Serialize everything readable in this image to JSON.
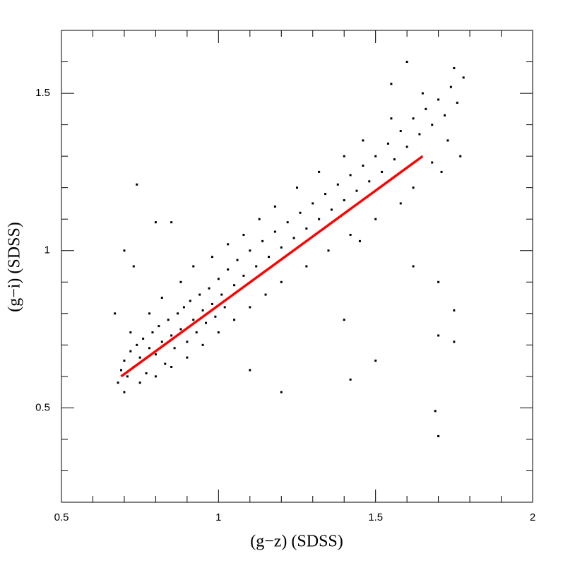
{
  "chart_data": {
    "type": "scatter",
    "xlabel": "(g−z) (SDSS)",
    "ylabel": "(g−i) (SDSS)",
    "xlim": [
      0.5,
      2
    ],
    "ylim": [
      0.2,
      1.7
    ],
    "xticks": [
      0.5,
      1,
      1.5,
      2
    ],
    "yticks": [
      0.5,
      1,
      1.5
    ],
    "xminorticks": [
      0.6,
      0.7,
      0.8,
      0.9,
      1.1,
      1.2,
      1.3,
      1.4,
      1.6,
      1.7,
      1.8,
      1.9
    ],
    "yminorticks": [
      0.3,
      0.4,
      0.6,
      0.7,
      0.8,
      0.9,
      1.1,
      1.2,
      1.3,
      1.4,
      1.6
    ],
    "color": "#000000",
    "x": [
      0.68,
      0.69,
      0.7,
      0.71,
      0.72,
      0.73,
      0.74,
      0.75,
      0.76,
      0.77,
      0.78,
      0.79,
      0.8,
      0.81,
      0.82,
      0.83,
      0.84,
      0.85,
      0.86,
      0.87,
      0.88,
      0.89,
      0.9,
      0.91,
      0.92,
      0.93,
      0.94,
      0.95,
      0.96,
      0.97,
      0.98,
      0.99,
      1.0,
      1.01,
      1.02,
      1.03,
      1.05,
      1.06,
      1.08,
      1.1,
      1.12,
      1.14,
      1.16,
      1.18,
      1.2,
      1.22,
      1.24,
      1.26,
      1.28,
      1.3,
      1.32,
      1.34,
      1.36,
      1.38,
      1.4,
      1.42,
      1.44,
      1.46,
      1.48,
      1.5,
      1.52,
      1.54,
      1.56,
      1.58,
      1.6,
      1.62,
      1.64,
      1.66,
      1.68,
      1.7,
      1.72,
      1.74,
      1.76,
      1.78,
      1.75,
      1.73,
      1.77,
      1.71,
      1.6,
      0.7,
      0.72,
      0.75,
      0.78,
      0.8,
      0.82,
      0.85,
      0.88,
      0.9,
      0.92,
      0.95,
      0.98,
      1.0,
      1.03,
      1.05,
      1.08,
      1.1,
      1.13,
      1.15,
      1.18,
      1.2,
      1.25,
      1.28,
      1.32,
      1.35,
      1.4,
      1.42,
      1.46,
      1.5,
      1.55,
      1.58,
      1.62,
      1.65,
      1.68,
      0.74,
      0.8,
      0.7,
      0.85,
      1.2,
      1.42,
      1.5,
      1.69,
      1.7,
      1.7,
      1.75,
      1.75,
      1.62,
      1.7,
      1.4,
      1.1,
      1.55,
      1.45,
      0.67,
      0.73
    ],
    "y": [
      0.58,
      0.62,
      0.65,
      0.6,
      0.68,
      0.63,
      0.7,
      0.66,
      0.72,
      0.61,
      0.69,
      0.74,
      0.67,
      0.76,
      0.71,
      0.64,
      0.78,
      0.73,
      0.69,
      0.8,
      0.75,
      0.82,
      0.71,
      0.84,
      0.78,
      0.74,
      0.86,
      0.81,
      0.77,
      0.88,
      0.83,
      0.79,
      0.91,
      0.86,
      0.82,
      0.94,
      0.89,
      0.97,
      0.92,
      1.0,
      0.95,
      1.03,
      0.98,
      1.06,
      1.01,
      1.09,
      1.04,
      1.12,
      1.07,
      1.15,
      1.1,
      1.18,
      1.13,
      1.21,
      1.16,
      1.24,
      1.19,
      1.27,
      1.22,
      1.3,
      1.25,
      1.34,
      1.29,
      1.38,
      1.33,
      1.42,
      1.37,
      1.45,
      1.4,
      1.48,
      1.43,
      1.52,
      1.47,
      1.55,
      1.58,
      1.35,
      1.3,
      1.25,
      1.6,
      0.55,
      0.74,
      0.58,
      0.8,
      0.6,
      0.85,
      0.63,
      0.9,
      0.66,
      0.95,
      0.7,
      0.98,
      0.74,
      1.02,
      0.78,
      1.05,
      0.82,
      1.1,
      0.86,
      1.14,
      0.9,
      1.2,
      0.95,
      1.25,
      1.0,
      1.3,
      1.05,
      1.35,
      1.1,
      1.42,
      1.15,
      1.2,
      1.5,
      1.28,
      1.21,
      1.09,
      1.0,
      1.09,
      0.55,
      0.59,
      0.65,
      0.49,
      0.41,
      0.73,
      0.71,
      0.81,
      0.95,
      0.9,
      0.78,
      0.62,
      1.53,
      1.03,
      0.8,
      0.95
    ],
    "fit": {
      "x": [
        0.69,
        1.65
      ],
      "y": [
        0.6,
        1.3
      ],
      "color": "#ff0000"
    }
  }
}
